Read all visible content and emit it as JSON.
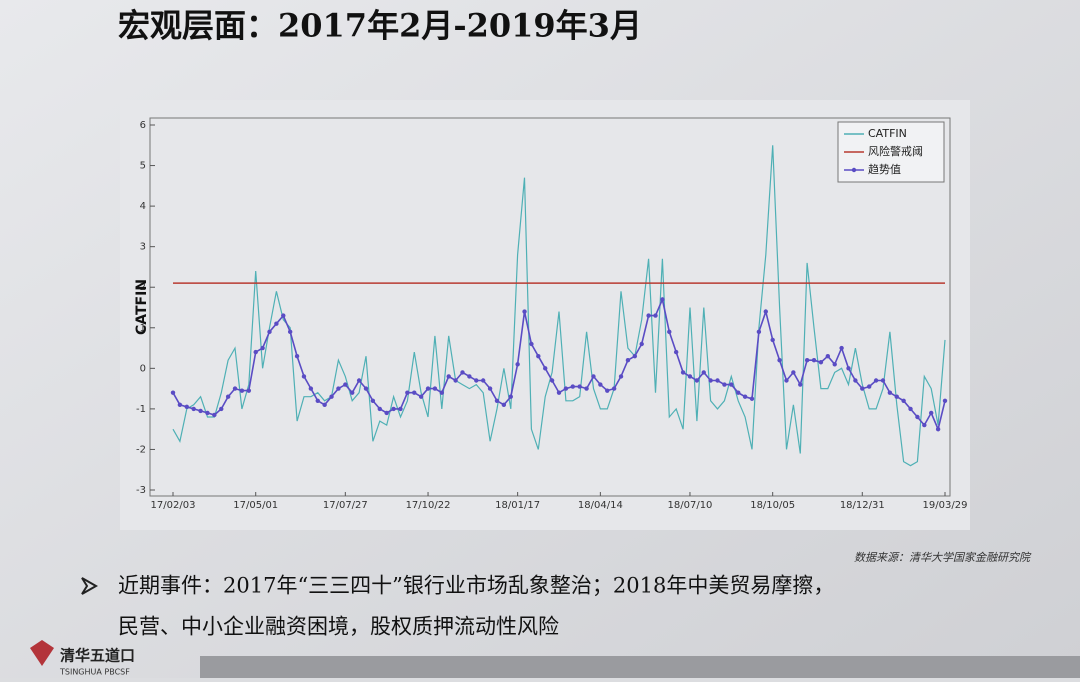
{
  "slide": {
    "title": "宏观层面：2017年2月-2019年3月",
    "source": "数据来源：清华大学国家金融研究院",
    "bullet_lines": [
      "近期事件：2017年“三三四十”银行业市场乱象整治；2018年中美贸易摩擦，",
      "民营、中小企业融资困境，股权质押流动性风险"
    ],
    "logo_name": "清华五道口",
    "logo_en": "TSINGHUA PBCSF"
  },
  "chart_data": {
    "type": "line",
    "y_label": "CATFIN",
    "categories": [
      "17/02/03",
      null,
      null,
      null,
      null,
      null,
      null,
      null,
      null,
      null,
      null,
      null,
      "17/05/01",
      null,
      null,
      null,
      null,
      null,
      null,
      null,
      null,
      null,
      null,
      null,
      null,
      "17/07/27",
      null,
      null,
      null,
      null,
      null,
      null,
      null,
      null,
      null,
      null,
      null,
      "17/10/22",
      null,
      null,
      null,
      null,
      null,
      null,
      null,
      null,
      null,
      null,
      null,
      null,
      "18/01/17",
      null,
      null,
      null,
      null,
      null,
      null,
      null,
      null,
      null,
      null,
      null,
      "18/04/14",
      null,
      null,
      null,
      null,
      null,
      null,
      null,
      null,
      null,
      null,
      null,
      null,
      "18/07/10",
      null,
      null,
      null,
      null,
      null,
      null,
      null,
      null,
      null,
      null,
      null,
      "18/10/05",
      null,
      null,
      null,
      null,
      null,
      null,
      null,
      null,
      null,
      null,
      null,
      null,
      "18/12/31",
      null,
      null,
      null,
      null,
      null,
      null,
      null,
      null,
      null,
      null,
      null,
      "19/03/29"
    ],
    "series": [
      {
        "name": "CATFIN",
        "color": "#4fb0b5",
        "markers": false,
        "values": [
          -1.5,
          -1.8,
          -1.0,
          -0.9,
          -0.7,
          -1.2,
          -1.2,
          -0.6,
          0.2,
          0.5,
          -1.0,
          -0.4,
          2.4,
          0.0,
          1.0,
          1.9,
          1.2,
          1.0,
          -1.3,
          -0.7,
          -0.7,
          -0.6,
          -0.8,
          -0.7,
          0.2,
          -0.2,
          -0.8,
          -0.6,
          0.3,
          -1.8,
          -1.3,
          -1.4,
          -0.7,
          -1.2,
          -0.8,
          0.4,
          -0.6,
          -1.2,
          0.8,
          -1.0,
          0.8,
          -0.3,
          -0.4,
          -0.5,
          -0.4,
          -0.6,
          -1.8,
          -1.0,
          0.0,
          -1.0,
          2.8,
          4.7,
          -1.5,
          -2.0,
          -0.7,
          -0.1,
          1.4,
          -0.8,
          -0.8,
          -0.7,
          0.9,
          -0.5,
          -1.0,
          -1.0,
          -0.5,
          1.9,
          0.5,
          0.3,
          1.2,
          2.7,
          -0.6,
          2.7,
          -1.2,
          -1.0,
          -1.5,
          1.5,
          -1.3,
          1.5,
          -0.8,
          -1.0,
          -0.8,
          -0.2,
          -0.8,
          -1.2,
          -2.0,
          1.0,
          2.8,
          5.5,
          1.5,
          -2.0,
          -0.9,
          -2.1,
          2.6,
          1.0,
          -0.5,
          -0.5,
          -0.1,
          0.0,
          -0.4,
          0.5,
          -0.4,
          -1.0,
          -1.0,
          -0.5,
          0.9,
          -0.9,
          -2.3,
          -2.4,
          -2.3,
          -0.2,
          -0.5,
          -1.4,
          0.7
        ]
      },
      {
        "name": "风险警戒阈",
        "color": "#b83a30",
        "constant": 2.1
      },
      {
        "name": "趋势值",
        "color": "#5a4cc4",
        "markers": true,
        "values": [
          -0.6,
          -0.9,
          -0.95,
          -1.0,
          -1.05,
          -1.1,
          -1.15,
          -1.0,
          -0.7,
          -0.5,
          -0.55,
          -0.55,
          0.4,
          0.5,
          0.9,
          1.1,
          1.3,
          0.9,
          0.3,
          -0.2,
          -0.5,
          -0.8,
          -0.9,
          -0.7,
          -0.5,
          -0.4,
          -0.6,
          -0.3,
          -0.5,
          -0.8,
          -1.0,
          -1.1,
          -1.0,
          -1.0,
          -0.6,
          -0.6,
          -0.7,
          -0.5,
          -0.5,
          -0.6,
          -0.2,
          -0.3,
          -0.1,
          -0.2,
          -0.3,
          -0.3,
          -0.5,
          -0.8,
          -0.9,
          -0.7,
          0.1,
          1.4,
          0.6,
          0.3,
          0.0,
          -0.3,
          -0.6,
          -0.5,
          -0.45,
          -0.45,
          -0.5,
          -0.2,
          -0.4,
          -0.55,
          -0.5,
          -0.2,
          0.2,
          0.3,
          0.6,
          1.3,
          1.3,
          1.7,
          0.9,
          0.4,
          -0.1,
          -0.2,
          -0.3,
          -0.1,
          -0.3,
          -0.3,
          -0.4,
          -0.4,
          -0.6,
          -0.7,
          -0.75,
          0.9,
          1.4,
          0.7,
          0.2,
          -0.3,
          -0.1,
          -0.4,
          0.2,
          0.2,
          0.15,
          0.3,
          0.1,
          0.5,
          0.0,
          -0.3,
          -0.5,
          -0.45,
          -0.3,
          -0.3,
          -0.6,
          -0.7,
          -0.8,
          -1.0,
          -1.2,
          -1.4,
          -1.1,
          -1.5,
          -0.8
        ]
      }
    ],
    "ylim": [
      -3,
      6
    ],
    "yticks": [
      -3,
      -2,
      -1,
      0,
      1,
      2,
      3,
      4,
      5,
      6
    ],
    "legend": "upper right"
  }
}
